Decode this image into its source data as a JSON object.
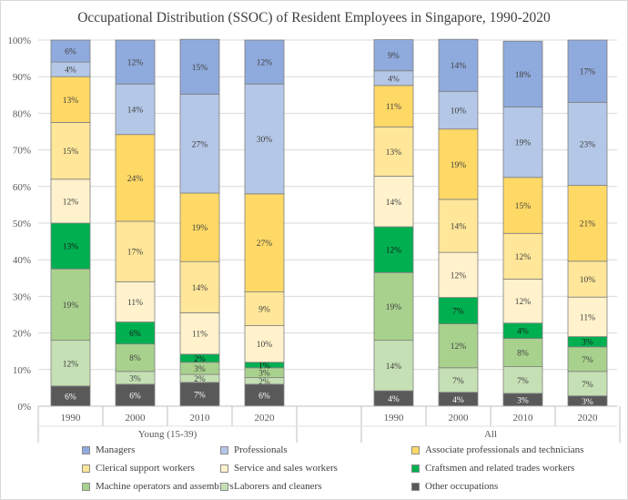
{
  "chart_data": {
    "type": "bar",
    "subtype": "stacked-100",
    "title": "Occupational Distribution (SSOC) of Resident Employees in Singapore, 1990-2020",
    "xlabel": "",
    "ylabel": "",
    "ylim": [
      0,
      100
    ],
    "y_ticks": [
      "0%",
      "10%",
      "20%",
      "30%",
      "40%",
      "50%",
      "60%",
      "70%",
      "80%",
      "90%",
      "100%"
    ],
    "grid": true,
    "legend_position": "bottom",
    "groups": [
      {
        "name": "Young (15-39)",
        "categories": [
          "1990",
          "2000",
          "2010",
          "2020"
        ]
      },
      {
        "name": "All",
        "categories": [
          "1990",
          "2000",
          "2010",
          "2020"
        ]
      }
    ],
    "series": [
      {
        "name": "Other occupations",
        "color": "#595959",
        "label_color": "#ffffff",
        "values": [
          5.5,
          6,
          6.5,
          6,
          4.2,
          3.8,
          3.5,
          2.8
        ],
        "labels": [
          "6%",
          "6%",
          "7%",
          "6%",
          "4%",
          "4%",
          "3%",
          "3%"
        ]
      },
      {
        "name": "Laborers and cleaners",
        "color": "#c5e0b4",
        "label_color": "#404040",
        "values": [
          12.5,
          3.5,
          2.2,
          1.8,
          13.8,
          6.7,
          7.3,
          6.7
        ],
        "labels": [
          "12%",
          "3%",
          "2%",
          "2%",
          "14%",
          "7%",
          "7%",
          "7%"
        ]
      },
      {
        "name": "Machine operators and assemblers",
        "color": "#a9d18e",
        "label_color": "#404040",
        "values": [
          19.5,
          7.5,
          3.3,
          2.7,
          18.5,
          12,
          7.7,
          6.7
        ],
        "labels": [
          "19%",
          "8%",
          "3%",
          "3%",
          "19%",
          "12%",
          "8%",
          "7%"
        ]
      },
      {
        "name": "Craftsmen and related trades workers",
        "color": "#00b050",
        "label_color": "#1a1a1a",
        "values": [
          12.5,
          6,
          2.2,
          1.5,
          12.5,
          7.2,
          4.2,
          2.8
        ],
        "labels": [
          "13%",
          "6%",
          "2%",
          "1%",
          "12%",
          "7%",
          "4%",
          "3%"
        ]
      },
      {
        "name": "Service and sales workers",
        "color": "#fff2cc",
        "label_color": "#404040",
        "values": [
          12,
          11,
          11.3,
          10,
          13.8,
          12.3,
          12,
          10.8
        ],
        "labels": [
          "12%",
          "11%",
          "11%",
          "10%",
          "14%",
          "12%",
          "12%",
          "11%"
        ]
      },
      {
        "name": "Clerical support workers",
        "color": "#ffe699",
        "label_color": "#404040",
        "values": [
          15.5,
          16.5,
          14,
          9.2,
          13.5,
          14.5,
          12.5,
          9.8
        ],
        "labels": [
          "15%",
          "17%",
          "14%",
          "9%",
          "13%",
          "14%",
          "12%",
          "10%"
        ]
      },
      {
        "name": "Associate professionals and technicians",
        "color": "#ffd966",
        "label_color": "#404040",
        "values": [
          12.5,
          23.7,
          18.7,
          26.8,
          11.3,
          19.2,
          15.3,
          20.7
        ],
        "labels": [
          "13%",
          "24%",
          "19%",
          "27%",
          "11%",
          "19%",
          "15%",
          "21%"
        ]
      },
      {
        "name": "Professionals",
        "color": "#b4c7e7",
        "label_color": "#404040",
        "values": [
          4,
          13.8,
          27,
          30,
          4,
          10.3,
          19.2,
          22.7
        ],
        "labels": [
          "4%",
          "14%",
          "27%",
          "30%",
          "4%",
          "10%",
          "19%",
          "23%"
        ]
      },
      {
        "name": "Managers",
        "color": "#8faadc",
        "label_color": "#404040",
        "values": [
          6,
          12,
          15,
          12,
          8.5,
          14.2,
          18,
          17
        ],
        "labels": [
          "6%",
          "12%",
          "15%",
          "12%",
          "9%",
          "14%",
          "18%",
          "17%"
        ]
      }
    ],
    "legend": [
      {
        "name": "Managers",
        "color": "#8faadc"
      },
      {
        "name": "Professionals",
        "color": "#b4c7e7"
      },
      {
        "name": "Associate professionals and technicians",
        "color": "#ffd966"
      },
      {
        "name": "Clerical support workers",
        "color": "#ffe699"
      },
      {
        "name": "Service and sales workers",
        "color": "#fff2cc"
      },
      {
        "name": "Craftsmen and related trades workers",
        "color": "#00b050"
      },
      {
        "name": "Machine operators and assemblers",
        "color": "#a9d18e"
      },
      {
        "name": "Laborers and cleaners",
        "color": "#c5e0b4"
      },
      {
        "name": "Other occupations",
        "color": "#595959"
      }
    ]
  }
}
